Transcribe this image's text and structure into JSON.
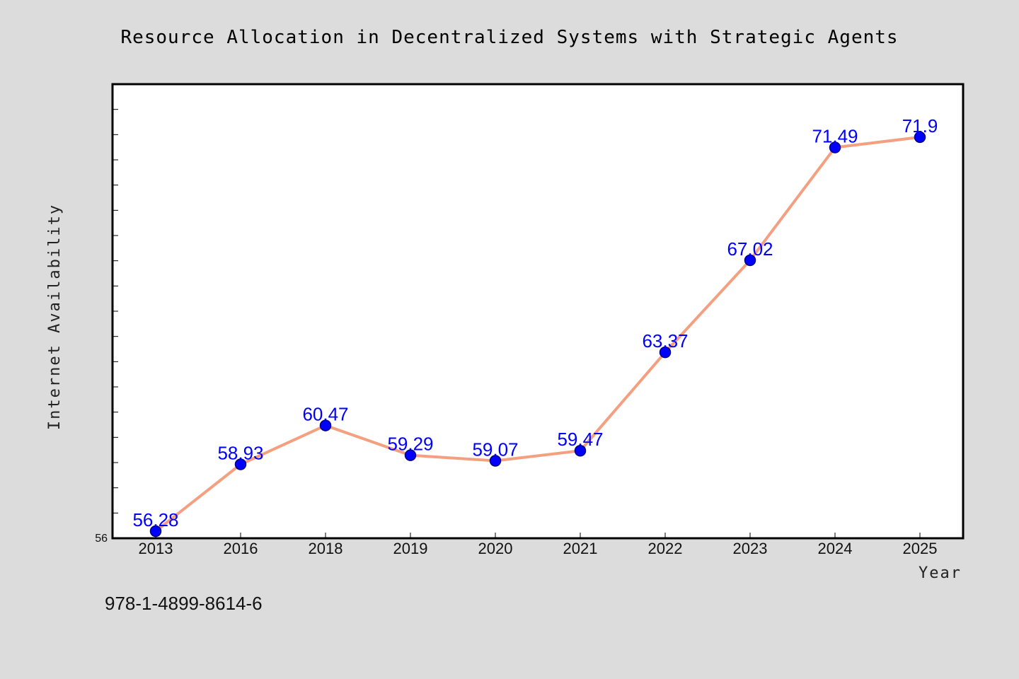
{
  "chart_data": {
    "type": "line",
    "title": "Resource Allocation in Decentralized Systems with Strategic Agents",
    "xlabel": "Year",
    "ylabel": "Internet Availability",
    "categories": [
      "2013",
      "2016",
      "2018",
      "2019",
      "2020",
      "2021",
      "2022",
      "2023",
      "2024",
      "2025"
    ],
    "series": [
      {
        "values": [
          56.28,
          58.93,
          60.47,
          59.29,
          59.07,
          59.47,
          63.37,
          67.02,
          71.49,
          71.9
        ],
        "labels": [
          "56.28",
          "58.93",
          "60.47",
          "59.29",
          "59.07",
          "59.47",
          "63.37",
          "67.02",
          "71.49",
          "71.9"
        ]
      }
    ],
    "ylim": [
      56,
      74
    ],
    "y_tick_labels": [
      "56"
    ],
    "grid": false,
    "legend": "none",
    "colors": {
      "line": "#f4a080",
      "marker_fill": "#0000ff",
      "marker_stroke": "#000080",
      "data_label": "#0000ff",
      "figure_background": "#dcdcdc",
      "plot_background": "#ffffff"
    }
  },
  "footer_text": "978-1-4899-8614-6"
}
